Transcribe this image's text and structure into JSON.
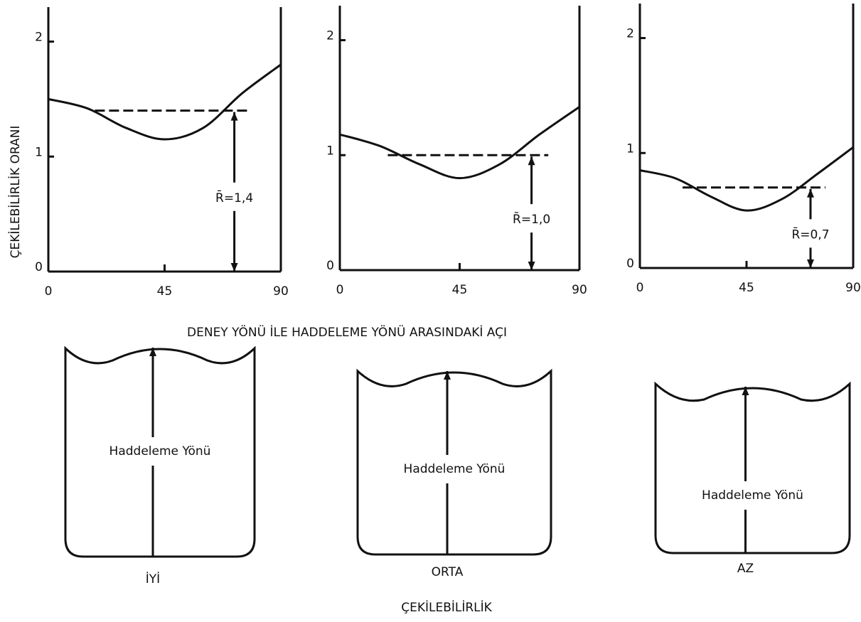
{
  "y_label": "ÇEKİLEBİLİRLİK ORANI",
  "x_label": "DENEY YÖNÜ İLE HADDELEME YÖNÜ ARASINDAKİ AÇI",
  "chart_data": [
    {
      "type": "line",
      "x": [
        0,
        15,
        30,
        45,
        60,
        75,
        90
      ],
      "values": [
        1.5,
        1.42,
        1.25,
        1.15,
        1.25,
        1.55,
        1.8
      ],
      "mean": 1.4,
      "mean_label": "R̄=1,4",
      "xlim": [
        0,
        90
      ],
      "ylim": [
        0,
        2.3
      ],
      "xticks": [
        0,
        45,
        90
      ],
      "yticks": [
        0,
        1,
        2
      ]
    },
    {
      "type": "line",
      "x": [
        0,
        15,
        30,
        45,
        60,
        75,
        90
      ],
      "values": [
        1.18,
        1.08,
        0.92,
        0.8,
        0.92,
        1.18,
        1.42
      ],
      "mean": 1.0,
      "mean_label": "R̄=1,0",
      "xlim": [
        0,
        90
      ],
      "ylim": [
        0,
        2.3
      ],
      "xticks": [
        0,
        45,
        90
      ],
      "yticks": [
        0,
        1,
        2
      ]
    },
    {
      "type": "line",
      "x": [
        0,
        15,
        30,
        45,
        60,
        75,
        90
      ],
      "values": [
        0.85,
        0.78,
        0.62,
        0.5,
        0.6,
        0.82,
        1.05
      ],
      "mean": 0.7,
      "mean_label": "R̄=0,7",
      "xlim": [
        0,
        90
      ],
      "ylim": [
        0,
        2.3
      ],
      "xticks": [
        0,
        45,
        90
      ],
      "yticks": [
        0,
        1,
        2
      ]
    }
  ],
  "drawings": [
    {
      "text": "Haddeleme Yönü",
      "label": "İYİ"
    },
    {
      "text": "Haddeleme Yönü",
      "label": "ORTA"
    },
    {
      "text": "Haddeleme Yönü",
      "label": "AZ"
    }
  ],
  "caption": "ÇEKİLEBİLİRLİK"
}
